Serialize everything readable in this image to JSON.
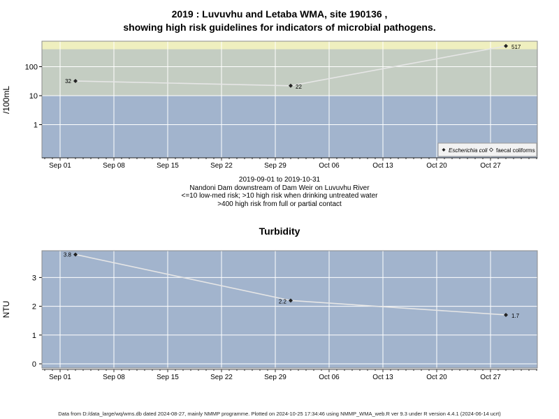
{
  "chart_data": [
    {
      "type": "line",
      "title_line1": "2019 : Luvuvhu and Letaba WMA, site 190136 ,",
      "title_line2": "showing high risk guidelines for indicators of microbial pathogens.",
      "ylabel": "/100mL",
      "yscale": "log",
      "y_ticks": [
        "1",
        "10",
        "100"
      ],
      "x_ticks": [
        "Sep 01",
        "Sep 08",
        "Sep 15",
        "Sep 22",
        "Sep 29",
        "Oct 06",
        "Oct 13",
        "Oct 20",
        "Oct 27"
      ],
      "series": [
        {
          "name": "Escherichia coli",
          "x": [
            "2019-09-03",
            "2019-10-01",
            "2019-10-29"
          ],
          "y": [
            32,
            22,
            517
          ],
          "labels": [
            "32",
            "22",
            "517"
          ]
        }
      ],
      "legend": {
        "placement": "bottom-right",
        "entries": [
          "Escherichia coli",
          "faecal coliforms"
        ]
      },
      "bands": [
        {
          "from": 0,
          "to": 10,
          "color": "#a2b4cd",
          "meaning": "low-med risk"
        },
        {
          "from": 10,
          "to": 400,
          "color": "#c4cdc2",
          "meaning": "high risk when drinking untreated water"
        },
        {
          "from": 400,
          "to": null,
          "color": "#efefbf",
          "meaning": "high risk from full or partial contact"
        }
      ],
      "caption": [
        "2019-09-01 to 2019-10-31",
        "Nandoni Dam downstream of Dam Weir on Luvuvhu River",
        "<=10 low-med risk; >10 high risk when drinking untreated water",
        ">400 high risk from full or partial contact"
      ]
    },
    {
      "type": "line",
      "title": "Turbidity",
      "ylabel": "NTU",
      "ylim": [
        0,
        4
      ],
      "y_ticks": [
        "0",
        "1",
        "2",
        "3"
      ],
      "x_ticks": [
        "Sep 01",
        "Sep 08",
        "Sep 15",
        "Sep 22",
        "Sep 29",
        "Oct 06",
        "Oct 13",
        "Oct 20",
        "Oct 27"
      ],
      "series": [
        {
          "x": [
            "2019-09-03",
            "2019-10-01",
            "2019-10-29"
          ],
          "y": [
            3.8,
            2.2,
            1.7
          ],
          "labels": [
            "3.8",
            "2.2",
            "1.7"
          ]
        }
      ],
      "background": "#a2b4cd"
    }
  ],
  "footer": "Data from D:/data_large/wq/wms.db dated 2024-08-27, mainly NMMP programme. Plotted on 2024-10-25 17:34:46 using NMMP_WMA_web.R ver 9.3 under R version 4.4.1 (2024-06-14 ucrt)"
}
